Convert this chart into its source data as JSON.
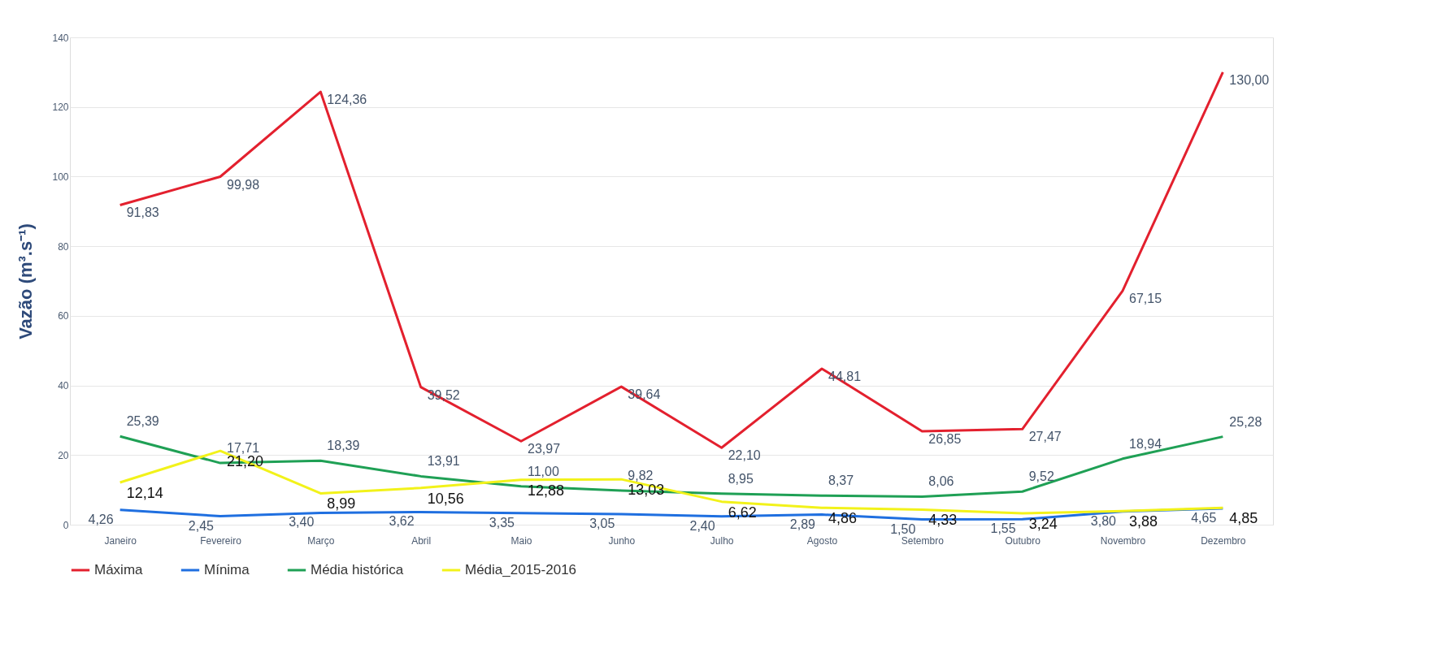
{
  "chart_data": {
    "type": "line",
    "ylabel": "Vazão (m³.s⁻¹)",
    "categories": [
      "Janeiro",
      "Fevereiro",
      "Março",
      "Abril",
      "Maio",
      "Junho",
      "Julho",
      "Agosto",
      "Setembro",
      "Outubro",
      "Novembro",
      "Dezembro"
    ],
    "series": [
      {
        "name": "Máxima",
        "color": "#e3202e",
        "values": [
          91.83,
          99.98,
          124.36,
          39.52,
          23.97,
          39.64,
          22.1,
          44.81,
          26.85,
          27.47,
          67.15,
          130.0
        ],
        "value_labels": [
          "91,83",
          "99,98",
          "124,36",
          "39,52",
          "23,97",
          "39,64",
          "22,10",
          "44,81",
          "26,85",
          "27,47",
          "67,15",
          "130,00"
        ]
      },
      {
        "name": "Mínima",
        "color": "#1f6fe0",
        "values": [
          4.26,
          2.45,
          3.4,
          3.62,
          3.35,
          3.05,
          2.4,
          2.89,
          1.5,
          1.55,
          3.8,
          4.65
        ],
        "value_labels": [
          "4,26",
          "2,45",
          "3,40",
          "3,62",
          "3,35",
          "3,05",
          "2,40",
          "2,89",
          "1,50",
          "1,55",
          "3,80",
          "4,65"
        ]
      },
      {
        "name": "Média histórica",
        "color": "#1fa055",
        "values": [
          25.39,
          17.71,
          18.39,
          13.91,
          11.0,
          9.82,
          8.95,
          8.37,
          8.06,
          9.52,
          18.94,
          25.28
        ],
        "value_labels": [
          "25,39",
          "17,71",
          "18,39",
          "13,91",
          "11,00",
          "9,82",
          "8,95",
          "8,37",
          "8,06",
          "9,52",
          "18,94",
          "25,28"
        ]
      },
      {
        "name": "Média_2015-2016",
        "color": "#f2f21a",
        "values": [
          12.14,
          21.2,
          8.99,
          10.56,
          12.88,
          13.03,
          6.62,
          4.86,
          4.33,
          3.24,
          3.88,
          4.85
        ],
        "value_labels": [
          "12,14",
          "21,20",
          "8,99",
          "10,56",
          "12,88",
          "13,03",
          "6,62",
          "4,86",
          "4,33",
          "3,24",
          "3,88",
          "4,85"
        ]
      }
    ],
    "ylim": [
      0,
      140
    ],
    "yticks": [
      0,
      20,
      40,
      60,
      80,
      100,
      120,
      140
    ],
    "grid": "y",
    "legend": "bottom",
    "marker": "none",
    "line_style": "solid"
  }
}
